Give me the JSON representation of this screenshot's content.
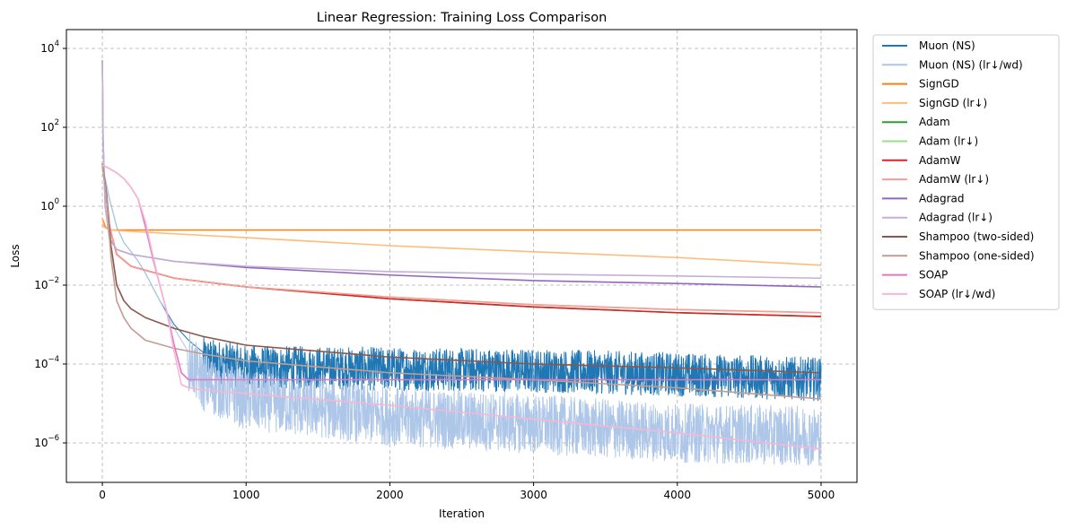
{
  "chart_data": {
    "type": "line",
    "title": "Linear Regression: Training Loss Comparison",
    "xlabel": "Iteration",
    "ylabel": "Loss",
    "y_scale": "log",
    "xlim": [
      -250,
      5250
    ],
    "ylim": [
      1e-07,
      30000
    ],
    "x_ticks": [
      0,
      1000,
      2000,
      3000,
      4000,
      5000
    ],
    "x_tick_labels": [
      "0",
      "1000",
      "2000",
      "3000",
      "4000",
      "5000"
    ],
    "y_ticks": [
      1e-06,
      0.0001,
      0.01,
      1,
      100,
      10000
    ],
    "y_tick_labels": [
      {
        "base": "10",
        "exp": "−6"
      },
      {
        "base": "10",
        "exp": "−4"
      },
      {
        "base": "10",
        "exp": "−2"
      },
      {
        "base": "10",
        "exp": "0"
      },
      {
        "base": "10",
        "exp": "2"
      },
      {
        "base": "10",
        "exp": "4"
      }
    ],
    "grid": true,
    "legend_position": "outside-right-top",
    "series": [
      {
        "name": "Muon (NS)",
        "color": "#1f77b4",
        "noise": 0.55,
        "noise_from": 700,
        "x": [
          0,
          20,
          50,
          100,
          150,
          200,
          250,
          300,
          400,
          500,
          600,
          700,
          1000,
          2000,
          3000,
          4000,
          5000
        ],
        "y": [
          10,
          5,
          1.5,
          0.3,
          0.12,
          0.07,
          0.04,
          0.02,
          0.004,
          0.001,
          0.0004,
          0.0002,
          0.00012,
          0.00011,
          0.0001,
          8e-05,
          6e-05
        ]
      },
      {
        "name": "Muon (NS) (lr↓/wd)",
        "color": "#aec7e8",
        "noise": 0.75,
        "noise_from": 600,
        "x": [
          0,
          20,
          50,
          100,
          150,
          200,
          250,
          300,
          400,
          500,
          600,
          700,
          1000,
          2000,
          3000,
          4000,
          5000
        ],
        "y": [
          10,
          5,
          1.5,
          0.3,
          0.12,
          0.07,
          0.04,
          0.02,
          0.004,
          0.0008,
          0.0002,
          6e-05,
          2e-05,
          8e-06,
          5e-06,
          3e-06,
          2.5e-06
        ]
      },
      {
        "name": "SignGD",
        "color": "#ff7f0e",
        "x": [
          0,
          20,
          60,
          100,
          1000,
          3000,
          5000
        ],
        "y": [
          0.5,
          0.3,
          0.25,
          0.25,
          0.25,
          0.25,
          0.25
        ]
      },
      {
        "name": "SignGD (lr↓)",
        "color": "#ffbb78",
        "x": [
          0,
          10,
          50,
          200,
          500,
          1000,
          2000,
          3000,
          4000,
          5000
        ],
        "y": [
          0.5,
          0.3,
          0.25,
          0.23,
          0.2,
          0.16,
          0.1,
          0.07,
          0.05,
          0.032
        ]
      },
      {
        "name": "Adam",
        "color": "#2ca02c",
        "x": [
          0,
          20,
          50,
          100,
          200,
          500,
          1000,
          2000,
          3000,
          4000,
          5000
        ],
        "y": [
          12,
          3,
          0.3,
          0.06,
          0.03,
          0.015,
          0.009,
          0.0045,
          0.0028,
          0.002,
          0.0016
        ]
      },
      {
        "name": "Adam (lr↓)",
        "color": "#98df8a",
        "x": [
          0,
          20,
          50,
          100,
          200,
          500,
          1000,
          2000,
          3000,
          4000,
          5000
        ],
        "y": [
          12,
          3,
          0.3,
          0.06,
          0.03,
          0.015,
          0.009,
          0.005,
          0.0032,
          0.0024,
          0.002
        ]
      },
      {
        "name": "AdamW",
        "color": "#d62728",
        "x": [
          0,
          20,
          50,
          100,
          200,
          500,
          1000,
          2000,
          3000,
          4000,
          5000
        ],
        "y": [
          12,
          3,
          0.3,
          0.06,
          0.03,
          0.015,
          0.009,
          0.0045,
          0.0028,
          0.002,
          0.0016
        ]
      },
      {
        "name": "AdamW (lr↓)",
        "color": "#ff9896",
        "x": [
          0,
          20,
          50,
          100,
          200,
          500,
          1000,
          2000,
          3000,
          4000,
          5000
        ],
        "y": [
          12,
          3,
          0.3,
          0.06,
          0.03,
          0.015,
          0.009,
          0.005,
          0.0032,
          0.0024,
          0.002
        ]
      },
      {
        "name": "Adagrad",
        "color": "#9467bd",
        "x": [
          0,
          5,
          20,
          50,
          100,
          200,
          500,
          1000,
          2000,
          3000,
          4000,
          5000
        ],
        "y": [
          5000,
          50,
          1,
          0.15,
          0.08,
          0.06,
          0.04,
          0.028,
          0.018,
          0.013,
          0.011,
          0.009
        ]
      },
      {
        "name": "Adagrad (lr↓)",
        "color": "#c5b0d5",
        "x": [
          0,
          5,
          20,
          50,
          100,
          200,
          500,
          1000,
          2000,
          3000,
          4000,
          5000
        ],
        "y": [
          5000,
          50,
          1,
          0.15,
          0.08,
          0.06,
          0.04,
          0.03,
          0.022,
          0.019,
          0.017,
          0.015
        ]
      },
      {
        "name": "Shampoo (two-sided)",
        "color": "#8c564b",
        "x": [
          0,
          30,
          60,
          100,
          150,
          200,
          300,
          500,
          700,
          1000,
          2000,
          3000,
          4000,
          5000
        ],
        "y": [
          12,
          2,
          0.1,
          0.01,
          0.004,
          0.0025,
          0.0015,
          0.0008,
          0.0005,
          0.0003,
          0.00015,
          0.0001,
          8e-05,
          6e-05
        ]
      },
      {
        "name": "Shampoo (one-sided)",
        "color": "#c49c94",
        "x": [
          0,
          30,
          60,
          100,
          150,
          200,
          300,
          500,
          700,
          1000,
          2000,
          3000,
          4000,
          5000
        ],
        "y": [
          12,
          1.5,
          0.05,
          0.004,
          0.0015,
          0.0008,
          0.0004,
          0.00025,
          0.00018,
          0.00012,
          6e-05,
          4e-05,
          2.5e-05,
          1.3e-05
        ]
      },
      {
        "name": "SOAP",
        "color": "#e377c2",
        "x": [
          0,
          50,
          100,
          150,
          200,
          250,
          300,
          350,
          400,
          450,
          500,
          550,
          600,
          1000,
          2000,
          3000,
          4000,
          5000
        ],
        "y": [
          11,
          9,
          7,
          5,
          3,
          1.5,
          0.3,
          0.05,
          0.01,
          0.002,
          0.0003,
          6e-05,
          4e-05,
          4e-05,
          4e-05,
          4e-05,
          4e-05,
          4e-05
        ]
      },
      {
        "name": "SOAP (lr↓/wd)",
        "color": "#f7b6d2",
        "x": [
          0,
          50,
          100,
          150,
          200,
          250,
          300,
          350,
          400,
          450,
          500,
          550,
          600,
          700,
          1000,
          2000,
          3000,
          4000,
          5000
        ],
        "y": [
          11,
          9,
          7,
          5,
          3,
          1.5,
          0.4,
          0.06,
          0.01,
          0.002,
          0.0002,
          3e-05,
          2.5e-05,
          2.2e-05,
          1.8e-05,
          9e-06,
          4e-06,
          1.8e-06,
          7e-07
        ]
      }
    ]
  }
}
